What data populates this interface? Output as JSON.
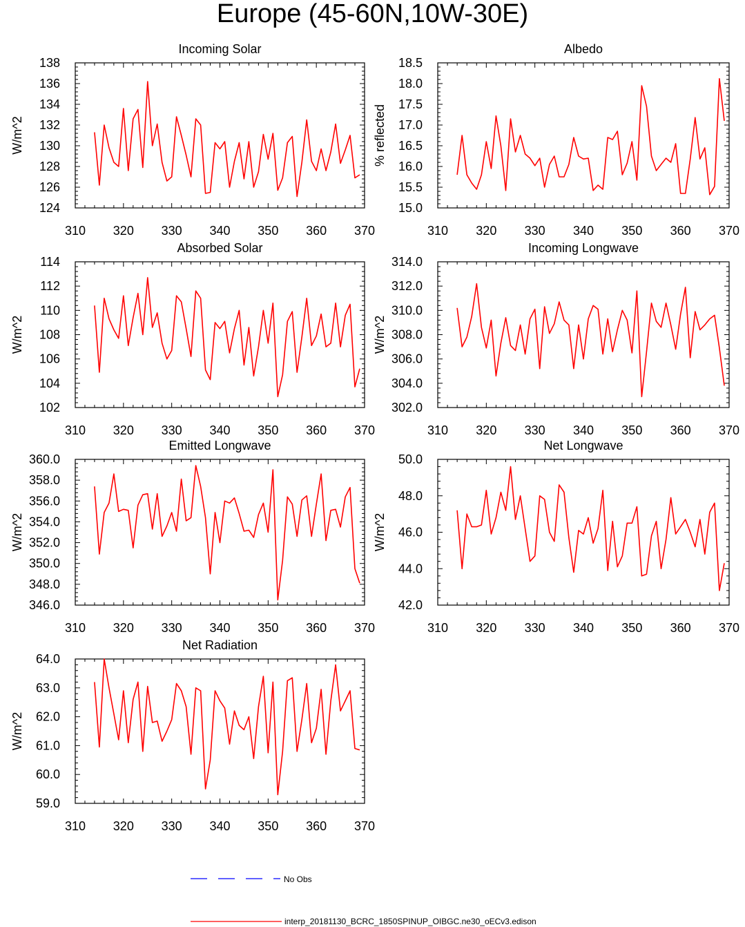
{
  "page": {
    "title": "Europe (45-60N,10W-30E)"
  },
  "legend": {
    "obs_label": "No Obs",
    "obs_color": "#0000ff",
    "model_label": "interp_20181130_BCRC_1850SPINUP_OIBGC.ne30_oECv3.edison",
    "model_color": "#ff0000"
  },
  "chart_data": [
    {
      "type": "line",
      "title": "Incoming Solar",
      "ylabel": "W/m^2",
      "xlim": [
        310,
        370
      ],
      "ylim": [
        124,
        138
      ],
      "xticks": [
        "310",
        "320",
        "330",
        "340",
        "350",
        "360",
        "370"
      ],
      "yticks": [
        "124",
        "126",
        "128",
        "130",
        "132",
        "134",
        "136",
        "138"
      ],
      "series": [
        {
          "x_start": 314,
          "x_step": 1,
          "color": "#ff0000",
          "values": [
            131.3,
            126.2,
            132.0,
            129.8,
            128.4,
            128.0,
            133.6,
            127.6,
            132.6,
            133.5,
            127.9,
            136.2,
            130.0,
            132.1,
            128.4,
            126.6,
            127.0,
            132.8,
            131.0,
            129.1,
            127.0,
            132.6,
            132.0,
            125.4,
            125.5,
            130.3,
            129.7,
            130.4,
            126.0,
            128.5,
            130.3,
            126.8,
            130.4,
            126.0,
            127.5,
            131.1,
            128.7,
            131.2,
            125.7,
            126.9,
            130.3,
            130.9,
            125.1,
            128.4,
            132.5,
            128.5,
            127.6,
            129.7,
            127.6,
            129.4,
            132.1,
            128.3,
            129.6,
            131.0,
            126.9,
            127.2
          ]
        }
      ]
    },
    {
      "type": "line",
      "title": "Albedo",
      "ylabel": "% reflected",
      "xlim": [
        310,
        370
      ],
      "ylim": [
        15.0,
        18.5
      ],
      "xticks": [
        "310",
        "320",
        "330",
        "340",
        "350",
        "360",
        "370"
      ],
      "yticks": [
        "15.0",
        "15.5",
        "16.0",
        "16.5",
        "17.0",
        "17.5",
        "18.0",
        "18.5"
      ],
      "series": [
        {
          "x_start": 314,
          "x_step": 1,
          "color": "#ff0000",
          "values": [
            15.8,
            16.75,
            15.8,
            15.6,
            15.45,
            15.8,
            16.6,
            15.95,
            17.22,
            16.5,
            15.42,
            17.15,
            16.35,
            16.75,
            16.3,
            16.2,
            16.02,
            16.2,
            15.5,
            16.05,
            16.25,
            15.75,
            15.75,
            16.05,
            16.7,
            16.25,
            16.18,
            16.2,
            15.42,
            15.55,
            15.45,
            16.7,
            16.65,
            16.85,
            15.8,
            16.08,
            16.6,
            15.67,
            17.95,
            17.45,
            16.25,
            15.9,
            16.05,
            16.2,
            16.1,
            16.55,
            15.35,
            15.35,
            16.18,
            17.18,
            16.18,
            16.45,
            15.32,
            15.52,
            18.12,
            17.1
          ]
        }
      ]
    },
    {
      "type": "line",
      "title": "Absorbed Solar",
      "ylabel": "W/m^2",
      "xlim": [
        310,
        370
      ],
      "ylim": [
        102,
        114
      ],
      "xticks": [
        "310",
        "320",
        "330",
        "340",
        "350",
        "360",
        "370"
      ],
      "yticks": [
        "102",
        "104",
        "106",
        "108",
        "110",
        "112",
        "114"
      ],
      "series": [
        {
          "x_start": 314,
          "x_step": 1,
          "color": "#ff0000",
          "values": [
            110.4,
            104.9,
            111.0,
            109.3,
            108.4,
            107.7,
            111.2,
            107.1,
            109.4,
            111.4,
            108.0,
            112.7,
            108.6,
            109.8,
            107.3,
            106.0,
            106.7,
            111.2,
            110.7,
            108.5,
            106.2,
            111.6,
            111.0,
            105.1,
            104.3,
            109.0,
            108.5,
            109.1,
            106.5,
            108.5,
            110.0,
            105.5,
            108.6,
            104.6,
            107.0,
            110.0,
            107.3,
            110.6,
            102.9,
            104.7,
            109.1,
            109.9,
            104.9,
            107.8,
            111.0,
            107.1,
            107.9,
            109.7,
            107.0,
            107.3,
            110.6,
            107.0,
            109.6,
            110.5,
            103.7,
            105.2
          ]
        }
      ]
    },
    {
      "type": "line",
      "title": "Incoming Longwave",
      "ylabel": "W/m^2",
      "xlim": [
        310,
        370
      ],
      "ylim": [
        302.0,
        314.0
      ],
      "xticks": [
        "310",
        "320",
        "330",
        "340",
        "350",
        "360",
        "370"
      ],
      "yticks": [
        "302.0",
        "304.0",
        "306.0",
        "308.0",
        "310.0",
        "312.0",
        "314.0"
      ],
      "series": [
        {
          "x_start": 314,
          "x_step": 1,
          "color": "#ff0000",
          "values": [
            310.2,
            307.0,
            307.8,
            309.5,
            312.2,
            308.6,
            306.9,
            309.2,
            304.6,
            307.3,
            309.4,
            307.1,
            306.7,
            308.8,
            306.4,
            309.3,
            310.1,
            305.2,
            310.3,
            308.1,
            308.9,
            310.7,
            309.2,
            308.8,
            305.2,
            308.8,
            306.0,
            309.3,
            310.4,
            310.1,
            306.4,
            309.3,
            306.6,
            308.4,
            310.0,
            309.2,
            306.5,
            311.6,
            302.9,
            306.6,
            310.6,
            309.1,
            308.6,
            310.6,
            308.8,
            306.8,
            309.7,
            311.9,
            306.1,
            309.9,
            308.4,
            308.8,
            309.3,
            309.6,
            306.9,
            303.8
          ]
        }
      ]
    },
    {
      "type": "line",
      "title": "Emitted Longwave",
      "ylabel": "W/m^2",
      "xlim": [
        310,
        370
      ],
      "ylim": [
        346.0,
        360.0
      ],
      "xticks": [
        "310",
        "320",
        "330",
        "340",
        "350",
        "360",
        "370"
      ],
      "yticks": [
        "346.0",
        "348.0",
        "350.0",
        "352.0",
        "354.0",
        "356.0",
        "358.0",
        "360.0"
      ],
      "series": [
        {
          "x_start": 314,
          "x_step": 1,
          "color": "#ff0000",
          "values": [
            357.4,
            350.9,
            354.9,
            355.8,
            358.6,
            355.0,
            355.2,
            355.1,
            351.5,
            355.6,
            356.6,
            356.7,
            353.3,
            356.7,
            352.6,
            353.6,
            354.9,
            353.1,
            358.1,
            354.1,
            354.4,
            359.4,
            357.4,
            354.4,
            349.0,
            354.9,
            352.0,
            356.0,
            355.8,
            356.3,
            354.8,
            353.1,
            353.2,
            352.5,
            354.7,
            355.8,
            353.0,
            359.0,
            346.5,
            350.3,
            356.4,
            355.7,
            352.6,
            356.1,
            356.5,
            352.6,
            355.7,
            358.6,
            352.2,
            355.1,
            355.2,
            353.5,
            356.4,
            357.3,
            349.5,
            348.1
          ]
        }
      ]
    },
    {
      "type": "line",
      "title": "Net Longwave",
      "ylabel": "W/m^2",
      "xlim": [
        310,
        370
      ],
      "ylim": [
        42.0,
        50.0
      ],
      "xticks": [
        "310",
        "320",
        "330",
        "340",
        "350",
        "360",
        "370"
      ],
      "yticks": [
        "42.0",
        "44.0",
        "46.0",
        "48.0",
        "50.0"
      ],
      "series": [
        {
          "x_start": 314,
          "x_step": 1,
          "color": "#ff0000",
          "values": [
            47.2,
            44.0,
            47.0,
            46.3,
            46.3,
            46.4,
            48.3,
            45.9,
            46.8,
            48.2,
            47.2,
            49.6,
            46.7,
            48.0,
            46.2,
            44.4,
            44.7,
            48.0,
            47.8,
            46.0,
            45.5,
            48.6,
            48.2,
            45.7,
            43.8,
            46.1,
            45.9,
            46.8,
            45.4,
            46.2,
            48.3,
            43.9,
            46.6,
            44.1,
            44.7,
            46.5,
            46.5,
            47.4,
            43.6,
            43.7,
            45.8,
            46.6,
            44.0,
            45.6,
            47.9,
            45.9,
            46.3,
            46.7,
            46.0,
            45.2,
            46.7,
            44.8,
            47.1,
            47.6,
            42.8,
            44.3
          ]
        }
      ]
    },
    {
      "type": "line",
      "title": "Net Radiation",
      "ylabel": "W/m^2",
      "xlim": [
        310,
        370
      ],
      "ylim": [
        59.0,
        64.0
      ],
      "xticks": [
        "310",
        "320",
        "330",
        "340",
        "350",
        "360",
        "370"
      ],
      "yticks": [
        "59.0",
        "60.0",
        "61.0",
        "62.0",
        "63.0",
        "64.0"
      ],
      "series": [
        {
          "x_start": 314,
          "x_step": 1,
          "color": "#ff0000",
          "values": [
            63.2,
            60.95,
            64.0,
            63.0,
            62.1,
            61.2,
            62.9,
            61.1,
            62.6,
            63.2,
            60.8,
            63.05,
            61.8,
            61.85,
            61.15,
            61.5,
            61.9,
            63.15,
            62.9,
            62.35,
            60.7,
            63.0,
            62.9,
            59.5,
            60.5,
            62.9,
            62.55,
            62.3,
            61.05,
            62.2,
            61.7,
            61.55,
            62.0,
            60.55,
            62.35,
            63.4,
            60.75,
            63.2,
            59.3,
            60.8,
            63.25,
            63.35,
            60.8,
            61.9,
            63.15,
            61.1,
            61.6,
            62.95,
            60.7,
            62.55,
            63.8,
            62.2,
            62.55,
            62.9,
            60.9,
            60.85
          ]
        }
      ]
    }
  ]
}
